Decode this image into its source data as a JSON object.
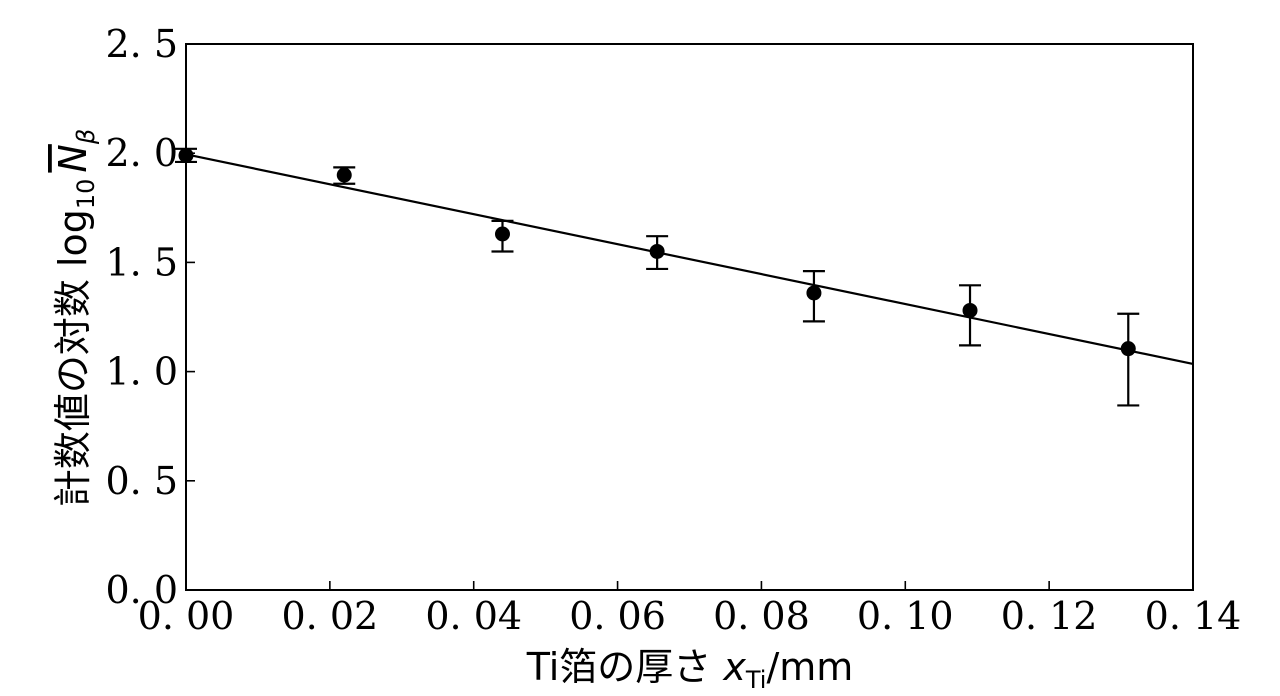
{
  "chart_data": {
    "type": "scatter",
    "xlabel": "Ti箔の厚さ x_Ti/mm",
    "ylabel": "計数値の対数 log10 N̄β",
    "xlabel_parts": {
      "prefix": "Ti箔の厚さ ",
      "var": "x",
      "sub": "Ti",
      "suffix": "/mm"
    },
    "ylabel_parts": {
      "prefix": "計数値の対数 ",
      "log": "log",
      "log_sub": "10",
      "var": "N",
      "var_sub": "β"
    },
    "xlim": [
      0.0,
      0.14
    ],
    "ylim": [
      0.0,
      2.5
    ],
    "xticks": [
      "0. 00",
      "0. 02",
      "0. 04",
      "0. 06",
      "0. 08",
      "0. 10",
      "0. 12",
      "0. 14"
    ],
    "xtick_values": [
      0.0,
      0.02,
      0.04,
      0.06,
      0.08,
      0.1,
      0.12,
      0.14
    ],
    "yticks": [
      "0. 0",
      "0. 5",
      "1. 0",
      "1. 5",
      "2. 0",
      "2. 5"
    ],
    "ytick_values": [
      0.0,
      0.5,
      1.0,
      1.5,
      2.0,
      2.5
    ],
    "grid": false,
    "tick_direction": "in",
    "series": [
      {
        "x": [
          0.0,
          0.022,
          0.044,
          0.0655,
          0.0873,
          0.109,
          0.131
        ],
        "y": [
          1.99,
          1.9,
          1.63,
          1.55,
          1.36,
          1.28,
          1.105
        ],
        "y_err_low": [
          1.96,
          1.86,
          1.55,
          1.47,
          1.23,
          1.12,
          0.845
        ],
        "y_err_high": [
          2.02,
          1.935,
          1.69,
          1.62,
          1.46,
          1.395,
          1.265
        ],
        "color": "#000000"
      }
    ],
    "fit_line": {
      "x": [
        0.0,
        0.14
      ],
      "y": [
        1.995,
        1.035
      ],
      "color": "#000000"
    }
  }
}
